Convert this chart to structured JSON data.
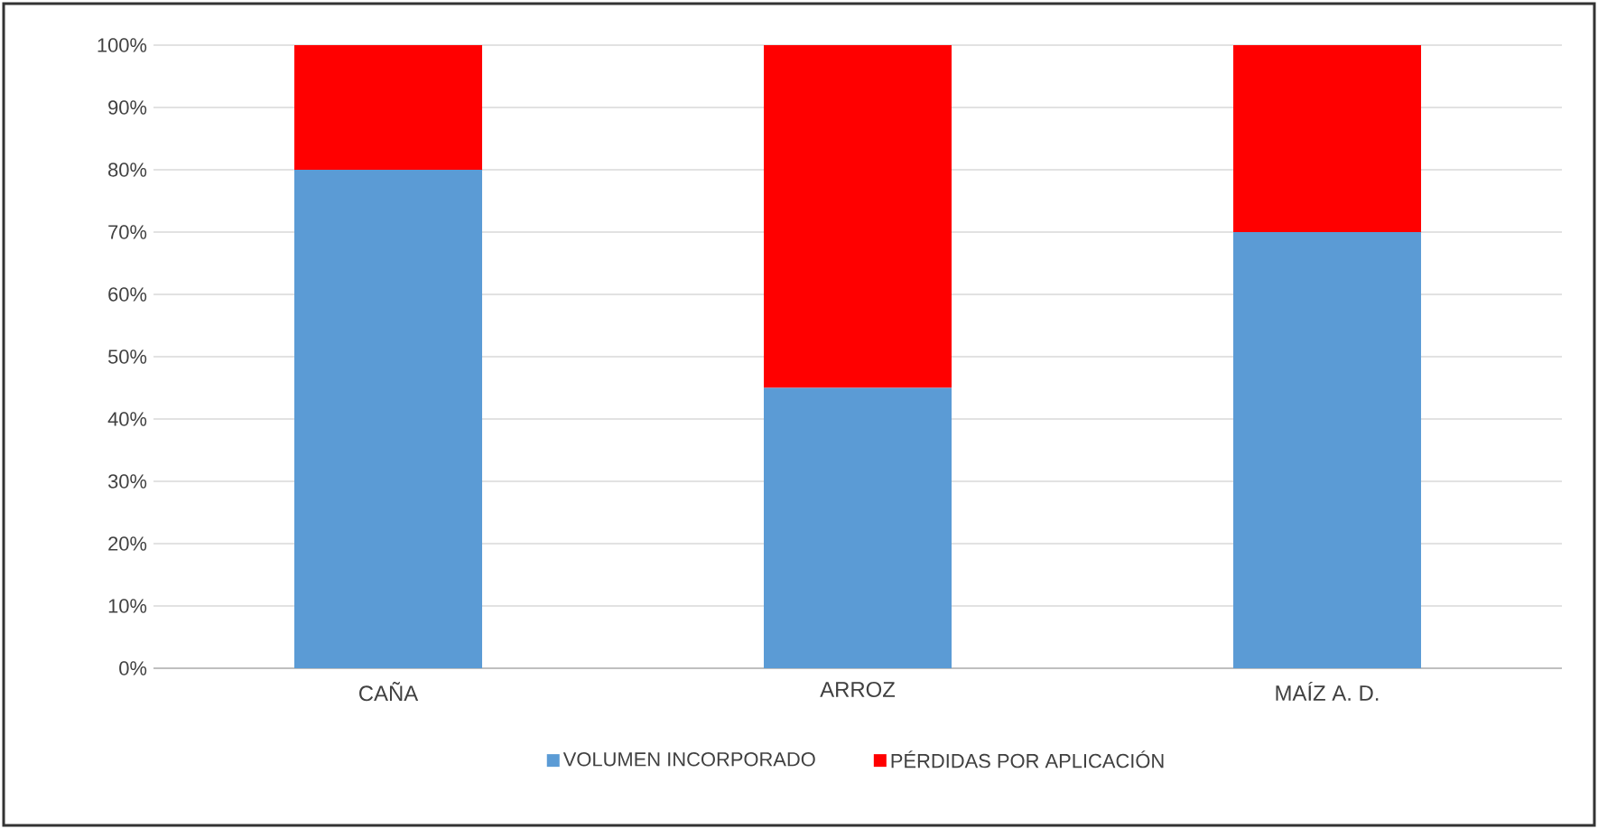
{
  "chart_data": {
    "type": "bar",
    "stacked": true,
    "categories": [
      "CAÑA",
      "ARROZ",
      "MAÍZ A. D."
    ],
    "series": [
      {
        "name": "VOLUMEN INCORPORADO",
        "color": "#5b9bd5",
        "values": [
          80,
          45,
          70
        ]
      },
      {
        "name": "PÉRDIDAS POR APLICACIÓN",
        "color": "#ff0000",
        "values": [
          20,
          55,
          30
        ]
      }
    ],
    "ylim": [
      0,
      100
    ],
    "yticks": [
      {
        "value": 0,
        "label": "0%"
      },
      {
        "value": 10,
        "label": "10%"
      },
      {
        "value": 20,
        "label": "20%"
      },
      {
        "value": 30,
        "label": "30%"
      },
      {
        "value": 40,
        "label": "40%"
      },
      {
        "value": 50,
        "label": "50%"
      },
      {
        "value": 60,
        "label": "60%"
      },
      {
        "value": 70,
        "label": "70%"
      },
      {
        "value": 80,
        "label": "80%"
      },
      {
        "value": 90,
        "label": "90%"
      },
      {
        "value": 100,
        "label": "100%"
      }
    ],
    "grid": "y",
    "legend": "bottom"
  }
}
